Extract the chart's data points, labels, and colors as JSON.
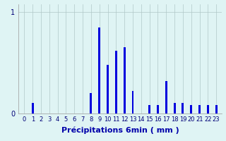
{
  "categories": [
    0,
    1,
    2,
    3,
    4,
    5,
    6,
    7,
    8,
    9,
    10,
    11,
    12,
    13,
    14,
    15,
    16,
    17,
    18,
    19,
    20,
    21,
    22,
    23
  ],
  "values": [
    0,
    0.1,
    0,
    0,
    0,
    0,
    0,
    0,
    0.2,
    0.85,
    0.48,
    0.62,
    0.65,
    0.22,
    0,
    0.08,
    0.08,
    0.32,
    0.1,
    0.1,
    0.08,
    0.08,
    0.08,
    0.08
  ],
  "bar_color": "#0000dd",
  "bg_color": "#dff4f4",
  "grid_color": "#b0c8c8",
  "xlabel": "Précipitations 6min ( mm )",
  "ylim": [
    0,
    1.08
  ],
  "xlim": [
    -0.7,
    23.7
  ],
  "bar_width": 0.25,
  "xlabel_fontsize": 8,
  "tick_fontsize": 6,
  "ytick_labels": [
    "0",
    "1"
  ],
  "ytick_positions": [
    0,
    1
  ]
}
